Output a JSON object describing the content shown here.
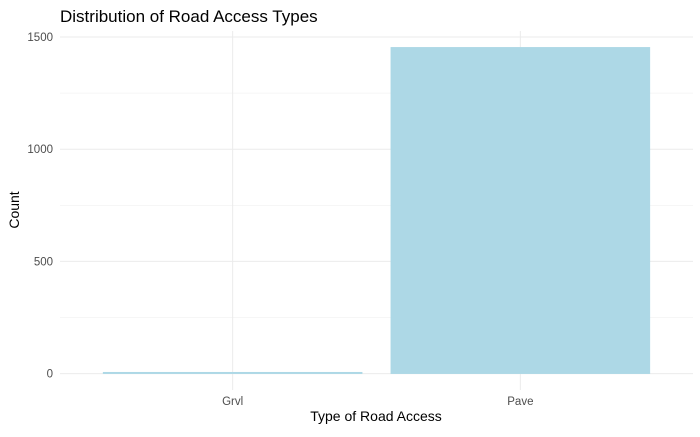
{
  "chart_data": {
    "type": "bar",
    "title": "Distribution of Road Access Types",
    "xlabel": "Type of Road Access",
    "ylabel": "Count",
    "categories": [
      "Grvl",
      "Pave"
    ],
    "values": [
      6,
      1454
    ],
    "ylim": [
      -73,
      1527
    ],
    "yticks": [
      0,
      500,
      1000,
      1500
    ],
    "grid": true,
    "legend": "none",
    "bar_color": "#ADD8E6",
    "bar_outline_color": "#ADD8E6",
    "background_color": "#FFFFFF",
    "grid_color": "#EBEBEB"
  }
}
